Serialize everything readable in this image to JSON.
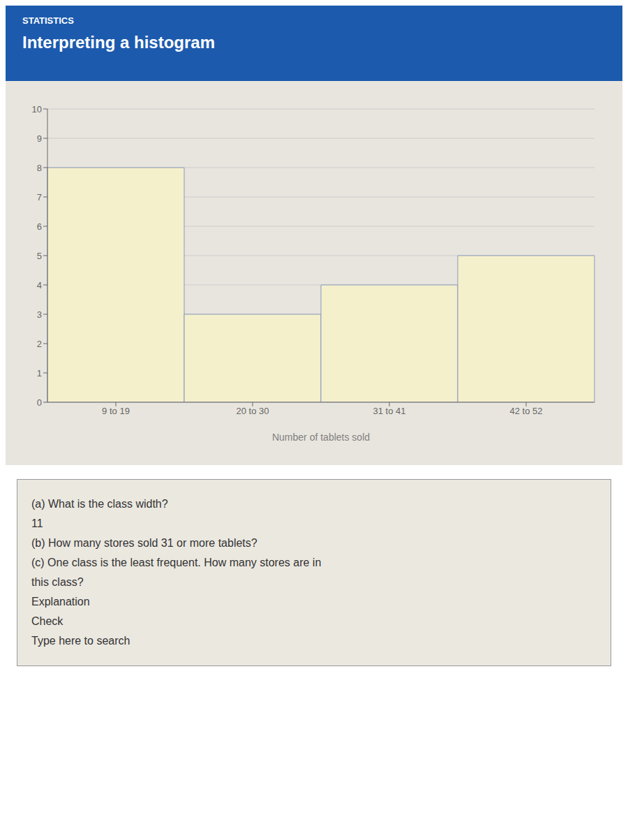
{
  "chart_data": {
    "type": "bar",
    "title": "Interpreting a histogram",
    "categories": [
      "9 to 19",
      "20 to 30",
      "31 to 41",
      "42 to 52"
    ],
    "values": [
      8,
      3,
      4,
      5
    ],
    "color": "#f5f0cc",
    "xlabel": "Number of tablets sold",
    "ylim": [
      0,
      10
    ],
    "yticks": [
      0,
      1,
      2,
      3,
      4,
      5,
      6,
      7,
      8,
      9,
      10
    ],
    "grid": true,
    "annotations": [
      "STATISTICS",
      "(a) What is the class width?",
      "11",
      "(b) How many stores sold 31 or more tablets?",
      "(c) One class is the least frequent. How many stores are in",
      "this class?",
      "Explanation",
      "Check",
      "Type here to search"
    ]
  }
}
